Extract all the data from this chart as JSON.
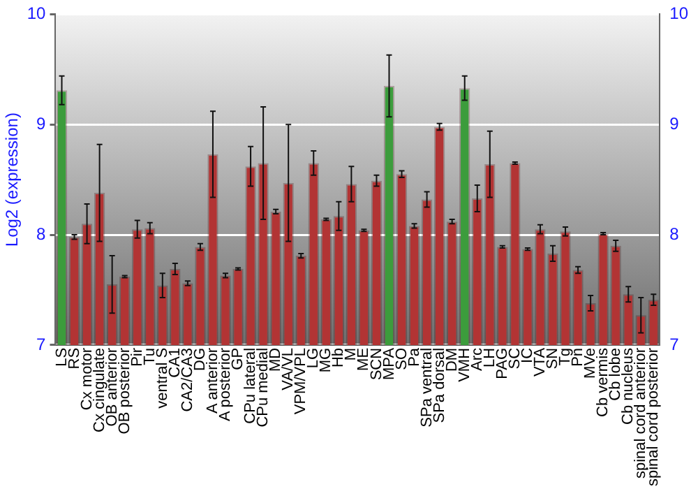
{
  "chart_data": {
    "type": "bar",
    "ylabel": "Log2 (expression)",
    "categories": [
      "LS",
      "RS",
      "Cx motor",
      "Cx cingulate",
      "OB anterior",
      "OB posterior",
      "Pir",
      "Tu",
      "ventral S",
      "CA1",
      "CA2/CA3",
      "DG",
      "A anterior",
      "A posterior",
      "GP",
      "CPu lateral",
      "CPu medial",
      "MD",
      "VA/VL",
      "VPM/VPL",
      "LG",
      "MG",
      "Hb",
      "M",
      "ME",
      "SCN",
      "MPA",
      "SO",
      "Pa",
      "SPa ventral",
      "SPa dorsal",
      "DM",
      "VMH",
      "Arc",
      "LH",
      "PAG",
      "SC",
      "IC",
      "VTA",
      "SN",
      "Tg",
      "Pn",
      "MVe",
      "Cb vermis",
      "Cb lobe",
      "Cb nucleus",
      "spinal cord anterior",
      "spinal cord posterior"
    ],
    "values": [
      9.31,
      7.98,
      8.1,
      8.38,
      7.55,
      7.62,
      8.05,
      8.06,
      7.54,
      7.69,
      7.56,
      7.89,
      8.73,
      7.63,
      7.69,
      8.62,
      8.65,
      8.21,
      8.47,
      7.81,
      8.65,
      8.14,
      8.17,
      8.46,
      8.04,
      8.49,
      9.35,
      8.55,
      8.08,
      8.32,
      8.98,
      8.12,
      9.33,
      8.33,
      8.64,
      7.89,
      8.65,
      7.87,
      8.05,
      7.83,
      8.03,
      7.68,
      7.38,
      8.01,
      7.9,
      7.46,
      7.27,
      7.41
    ],
    "errors": [
      0.13,
      0.02,
      0.18,
      0.44,
      0.26,
      0.01,
      0.08,
      0.05,
      0.11,
      0.05,
      0.02,
      0.03,
      0.39,
      0.02,
      0.01,
      0.18,
      0.51,
      0.02,
      0.53,
      0.02,
      0.11,
      0.01,
      0.13,
      0.16,
      0.01,
      0.05,
      0.28,
      0.03,
      0.02,
      0.07,
      0.03,
      0.02,
      0.11,
      0.12,
      0.3,
      0.01,
      0.01,
      0.01,
      0.04,
      0.07,
      0.04,
      0.03,
      0.07,
      0.01,
      0.05,
      0.07,
      0.16,
      0.05
    ],
    "colors": [
      "#3c9c3c",
      "#b23434",
      "#b23434",
      "#b23434",
      "#b23434",
      "#b23434",
      "#b23434",
      "#b23434",
      "#b23434",
      "#b23434",
      "#b23434",
      "#b23434",
      "#b23434",
      "#b23434",
      "#b23434",
      "#b23434",
      "#b23434",
      "#b23434",
      "#b23434",
      "#b23434",
      "#b23434",
      "#b23434",
      "#b23434",
      "#b23434",
      "#b23434",
      "#b23434",
      "#3c9c3c",
      "#b23434",
      "#b23434",
      "#b23434",
      "#b23434",
      "#b23434",
      "#3c9c3c",
      "#b23434",
      "#b23434",
      "#b23434",
      "#b23434",
      "#b23434",
      "#b23434",
      "#b23434",
      "#b23434",
      "#b23434",
      "#b23434",
      "#b23434",
      "#b23434",
      "#b23434",
      "#b23434",
      "#b23434"
    ],
    "ylim": [
      7,
      10
    ],
    "yticks": [
      7,
      8,
      9,
      10
    ],
    "y2lim": [
      7,
      10
    ],
    "y2ticks": [
      7,
      8,
      9,
      10
    ],
    "grid": "y"
  }
}
